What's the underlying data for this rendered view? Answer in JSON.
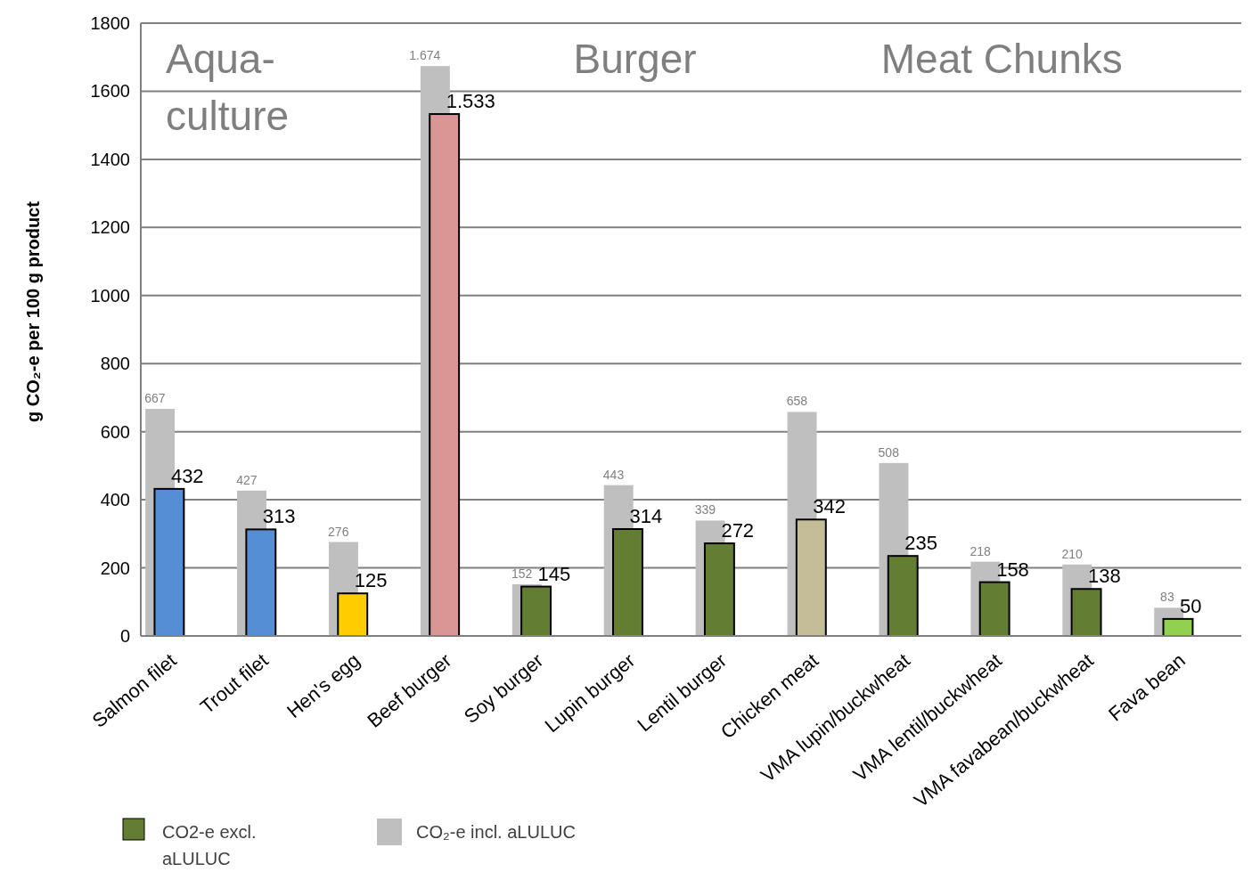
{
  "chart_data": {
    "type": "bar",
    "ylabel": "g CO₂-e per 100 g product",
    "categories": [
      "Salmon filet",
      "Trout filet",
      "Hen's egg",
      "Beef burger",
      "Soy burger",
      "Lupin burger",
      "Lentil burger",
      "Chicken meat",
      "VMA lupin/buckwheat",
      "VMA lentil/buckwheat",
      "VMA favabean/buckwheat",
      "Fava bean"
    ],
    "series": [
      {
        "name": "CO₂-e incl. aLULUC",
        "color": "#bfbfbf",
        "values": [
          667,
          427,
          276,
          1674,
          152,
          443,
          339,
          658,
          508,
          218,
          210,
          83
        ],
        "value_labels": [
          "667",
          "427",
          "276",
          "1.674",
          "152",
          "443",
          "339",
          "658",
          "508",
          "218",
          "210",
          "83"
        ]
      },
      {
        "name": "CO2-e excl. aLULUC",
        "color": "#637d32",
        "colors": [
          "#558ed5",
          "#558ed5",
          "#ffcc00",
          "#d99694",
          "#637d32",
          "#637d32",
          "#637d32",
          "#c4bd97",
          "#637d32",
          "#637d32",
          "#637d32",
          "#92d050"
        ],
        "values": [
          432,
          313,
          125,
          1533,
          145,
          314,
          272,
          342,
          235,
          158,
          138,
          50
        ],
        "value_labels": [
          "432",
          "313",
          "125",
          "1.533",
          "145",
          "314",
          "272",
          "342",
          "235",
          "158",
          "138",
          "50"
        ]
      }
    ],
    "ylim": [
      0,
      1800
    ],
    "yticks": [
      0,
      200,
      400,
      600,
      800,
      1000,
      1200,
      1400,
      1600,
      1800
    ],
    "grid": "y",
    "legend": "bottom left",
    "annotations": [
      "Aqua-culture",
      "Burger",
      "Meat Chunks"
    ]
  }
}
